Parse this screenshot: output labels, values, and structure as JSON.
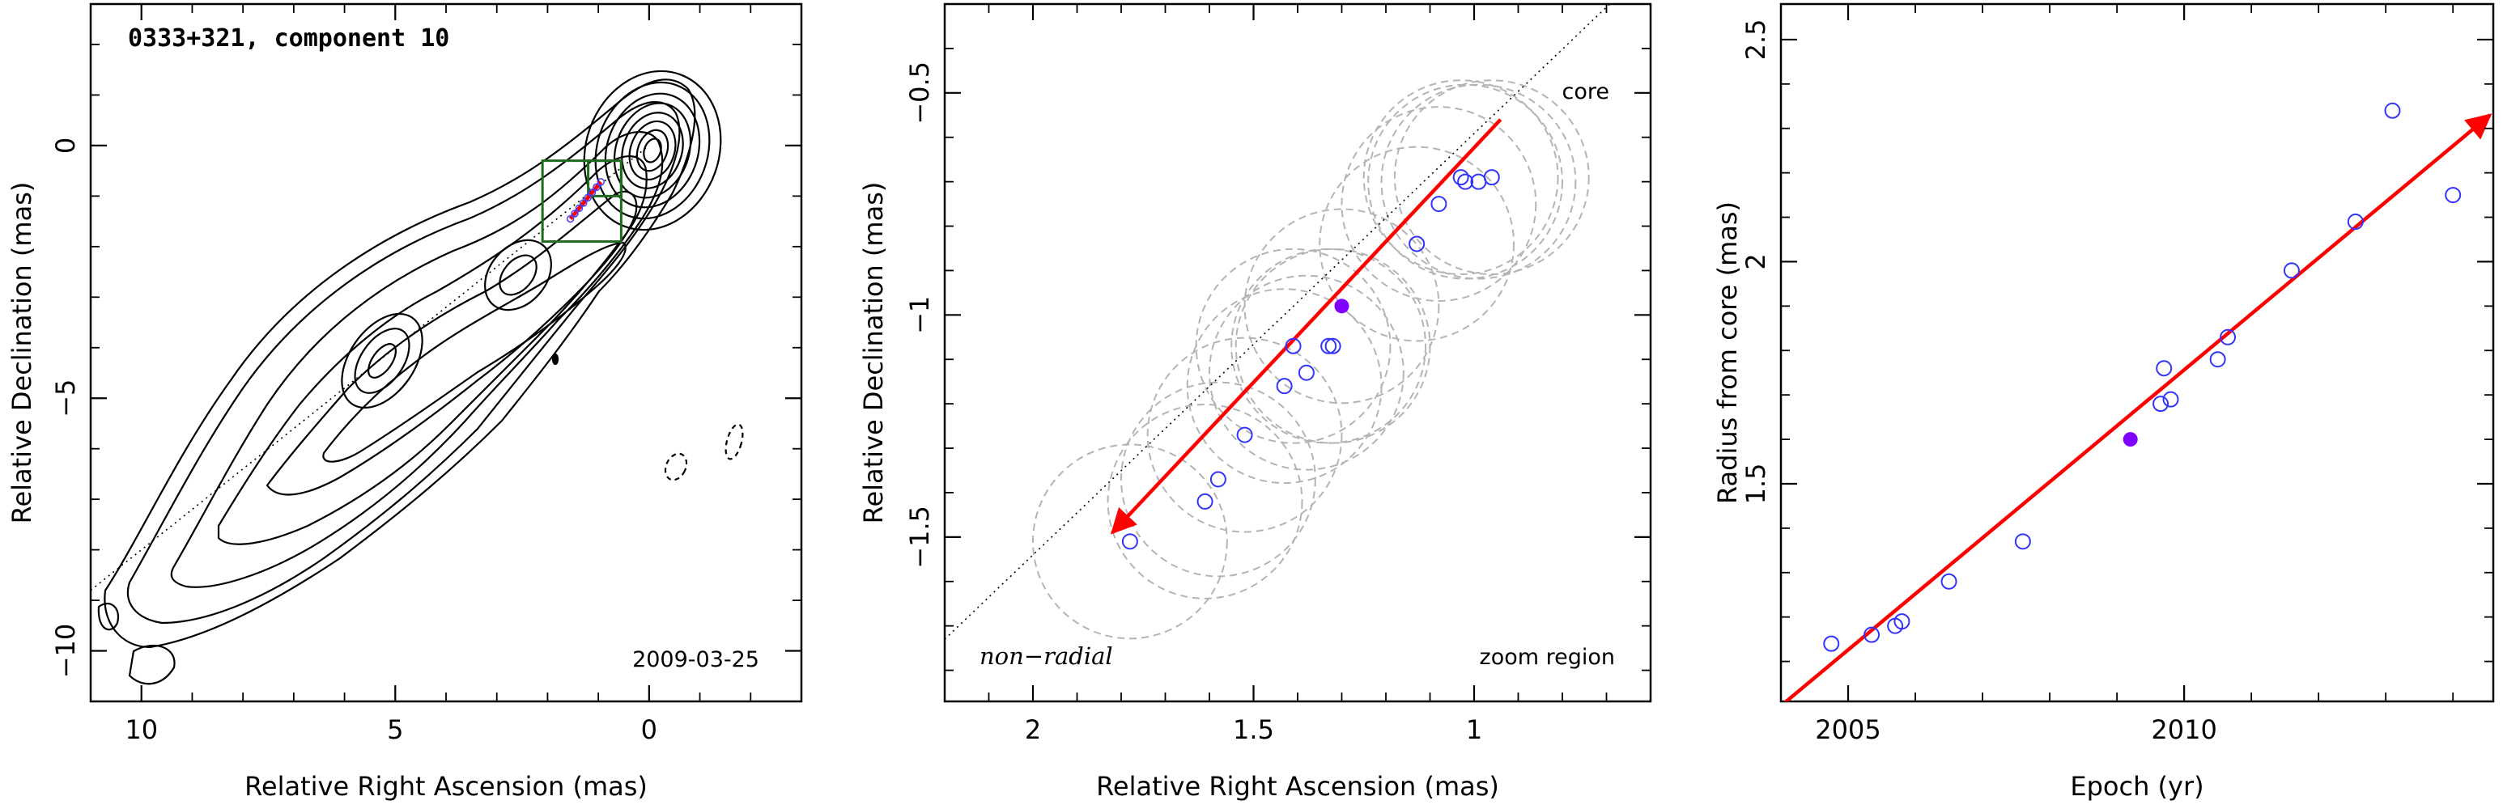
{
  "chart_data": [
    {
      "type": "contour",
      "title": "0333+321, component 10",
      "xlabel": "Relative Right Ascension (mas)",
      "ylabel": "Relative Declination (mas)",
      "xlim": [
        11,
        -3
      ],
      "ylim": [
        -11,
        2.8
      ],
      "xticks": [
        "10",
        "5",
        "0"
      ],
      "yticks": [
        "0",
        "−5",
        "−10"
      ],
      "date": "2009-03-25",
      "jet_axis_endpoint": [
        11.0,
        -8.8
      ],
      "zoom_box": {
        "x": [
          2.1,
          0.55
        ],
        "y": [
          -1.9,
          -0.3
        ]
      },
      "inner_box": {
        "x": [
          1.2,
          0.55
        ],
        "y": [
          -1.0,
          -0.3
        ]
      },
      "component_track": {
        "from": [
          1.55,
          -1.45
        ],
        "to": [
          0.95,
          -0.72
        ]
      },
      "colors": {
        "contour": "#000000",
        "box": "#1d6b1d",
        "track": "#ff0000",
        "points": "#4040ff"
      }
    },
    {
      "type": "scatter",
      "xlabel": "Relative Right Ascension (mas)",
      "ylabel": "Relative Declination (mas)",
      "xlim": [
        2.2,
        0.6
      ],
      "ylim": [
        -1.87,
        -0.3
      ],
      "xticks": [
        "2",
        "1.5",
        "1"
      ],
      "yticks": [
        "−0.5",
        "−1",
        "−1.5"
      ],
      "corner_left": "non−radial",
      "corner_right": "zoom region",
      "core_label": "core",
      "points": [
        [
          1.78,
          -1.51
        ],
        [
          1.61,
          -1.42
        ],
        [
          1.58,
          -1.37
        ],
        [
          1.52,
          -1.27
        ],
        [
          1.43,
          -1.16
        ],
        [
          1.38,
          -1.13
        ],
        [
          1.41,
          -1.07
        ],
        [
          1.33,
          -1.07
        ],
        [
          1.32,
          -1.07
        ],
        [
          1.13,
          -0.84
        ],
        [
          1.08,
          -0.75
        ],
        [
          1.03,
          -0.69
        ],
        [
          1.02,
          -0.7
        ],
        [
          0.99,
          -0.7
        ],
        [
          0.96,
          -0.69
        ]
      ],
      "highlight": [
        1.3,
        -0.98
      ],
      "circle_radius": 0.22,
      "circles": [
        [
          1.78,
          -1.51
        ],
        [
          1.61,
          -1.42
        ],
        [
          1.58,
          -1.37
        ],
        [
          1.52,
          -1.27
        ],
        [
          1.43,
          -1.16
        ],
        [
          1.38,
          -1.13
        ],
        [
          1.41,
          -1.07
        ],
        [
          1.33,
          -1.07
        ],
        [
          1.32,
          -1.07
        ],
        [
          1.3,
          -0.98
        ],
        [
          1.13,
          -0.84
        ],
        [
          1.08,
          -0.75
        ],
        [
          1.03,
          -0.69
        ],
        [
          1.02,
          -0.7
        ],
        [
          0.99,
          -0.7
        ],
        [
          0.96,
          -0.69
        ]
      ],
      "arrow": {
        "from": [
          0.94,
          -0.56
        ],
        "to": [
          1.82,
          -1.49
        ]
      },
      "jet_axis": {
        "from": [
          2.2,
          -1.73
        ],
        "to": [
          0.64,
          -0.25
        ]
      },
      "colors": {
        "points": "#3333ff",
        "highlight": "#8000ff",
        "arrow": "#ff0000",
        "circles": "#b4b4b4"
      }
    },
    {
      "type": "scatter",
      "xlabel": "Epoch (yr)",
      "ylabel": "Radius from core (mas)",
      "xlim": [
        2004.0,
        2014.6
      ],
      "ylim": [
        1.01,
        2.58
      ],
      "xticks": [
        "2005",
        "2010"
      ],
      "yticks": [
        "1.5",
        "2",
        "2.5"
      ],
      "points": [
        [
          2004.75,
          1.14
        ],
        [
          2005.35,
          1.16
        ],
        [
          2005.7,
          1.18
        ],
        [
          2005.8,
          1.19
        ],
        [
          2006.5,
          1.28
        ],
        [
          2007.6,
          1.37
        ],
        [
          2009.65,
          1.68
        ],
        [
          2009.7,
          1.76
        ],
        [
          2009.8,
          1.69
        ],
        [
          2010.5,
          1.78
        ],
        [
          2010.65,
          1.83
        ],
        [
          2011.6,
          1.98
        ],
        [
          2012.55,
          2.09
        ],
        [
          2013.1,
          2.34
        ],
        [
          2014.0,
          2.15
        ]
      ],
      "highlight": [
        2009.2,
        1.6
      ],
      "fit_line": {
        "from": [
          2004.0,
          1.0
        ],
        "to": [
          2014.55,
          2.33
        ]
      },
      "colors": {
        "points": "#3333ff",
        "highlight": "#8000ff",
        "fit": "#ff0000"
      }
    }
  ]
}
